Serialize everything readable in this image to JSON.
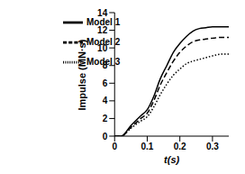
{
  "chart_data": {
    "type": "line",
    "x_label": "t(s)",
    "y_label": "Impulse (MN·s)",
    "x": [
      0,
      0.02,
      0.05,
      0.08,
      0.1,
      0.12,
      0.14,
      0.16,
      0.18,
      0.2,
      0.22,
      0.24,
      0.26,
      0.28,
      0.3,
      0.33,
      0.35
    ],
    "series": [
      {
        "name": "Model 1",
        "color": "#000000",
        "line_style": "solid",
        "values": [
          0,
          0,
          1.2,
          2.3,
          3.0,
          4.5,
          6.5,
          8.0,
          9.5,
          10.5,
          11.3,
          11.9,
          12.2,
          12.3,
          12.4,
          12.4,
          12.4
        ]
      },
      {
        "name": "Model 2",
        "color": "#000000",
        "line_style": "dashed",
        "values": [
          0,
          0,
          1.0,
          2.0,
          2.6,
          4.0,
          5.8,
          7.2,
          8.5,
          9.5,
          10.2,
          10.7,
          10.9,
          11.0,
          11.1,
          11.2,
          11.2
        ]
      },
      {
        "name": "Model 3",
        "color": "#000000",
        "line_style": "dotted",
        "values": [
          0,
          0,
          0.9,
          1.7,
          2.2,
          3.3,
          4.7,
          5.9,
          6.9,
          7.6,
          8.2,
          8.5,
          8.7,
          8.9,
          9.1,
          9.3,
          9.3
        ]
      }
    ],
    "xlim": [
      0,
      0.35
    ],
    "xticks": [
      0,
      0.1,
      0.2,
      0.3
    ],
    "ylim": [
      0,
      14
    ],
    "yticks": [
      0,
      2,
      4,
      6,
      8,
      10,
      12,
      14
    ],
    "grid": false,
    "legend": "upper left"
  }
}
